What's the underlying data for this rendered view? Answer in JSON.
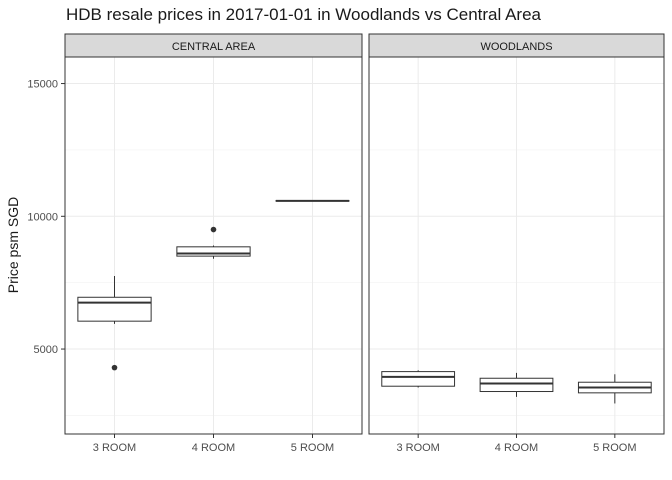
{
  "title": "HDB resale prices in 2017-01-01 in Woodlands vs Central Area",
  "chart_data": {
    "type": "boxplot",
    "title": "HDB resale prices in 2017-01-01 in Woodlands vs Central Area",
    "xlabel": "",
    "ylabel": "Price psm SGD",
    "categories": [
      "3 ROOM",
      "4 ROOM",
      "5 ROOM"
    ],
    "ylim": [
      1800,
      16000
    ],
    "yticks": [
      5000,
      10000,
      15000
    ],
    "grid": true,
    "facets": [
      {
        "label": "CENTRAL AREA",
        "boxes": [
          {
            "category": "3 ROOM",
            "min": 5950,
            "q1": 6050,
            "median": 6750,
            "q3": 6950,
            "max": 7750,
            "outliers": [
              4300
            ]
          },
          {
            "category": "4 ROOM",
            "min": 8400,
            "q1": 8500,
            "median": 8600,
            "q3": 8850,
            "max": 8900,
            "outliers": [
              9500
            ]
          },
          {
            "category": "5 ROOM",
            "min": 10580,
            "q1": 10580,
            "median": 10580,
            "q3": 10580,
            "max": 10580,
            "outliers": []
          }
        ]
      },
      {
        "label": "WOODLANDS",
        "boxes": [
          {
            "category": "3 ROOM",
            "min": 3550,
            "q1": 3600,
            "median": 3950,
            "q3": 4150,
            "max": 4200,
            "outliers": []
          },
          {
            "category": "4 ROOM",
            "min": 3200,
            "q1": 3400,
            "median": 3700,
            "q3": 3900,
            "max": 4100,
            "outliers": []
          },
          {
            "category": "5 ROOM",
            "min": 2950,
            "q1": 3350,
            "median": 3550,
            "q3": 3750,
            "max": 4050,
            "outliers": []
          }
        ]
      }
    ]
  }
}
